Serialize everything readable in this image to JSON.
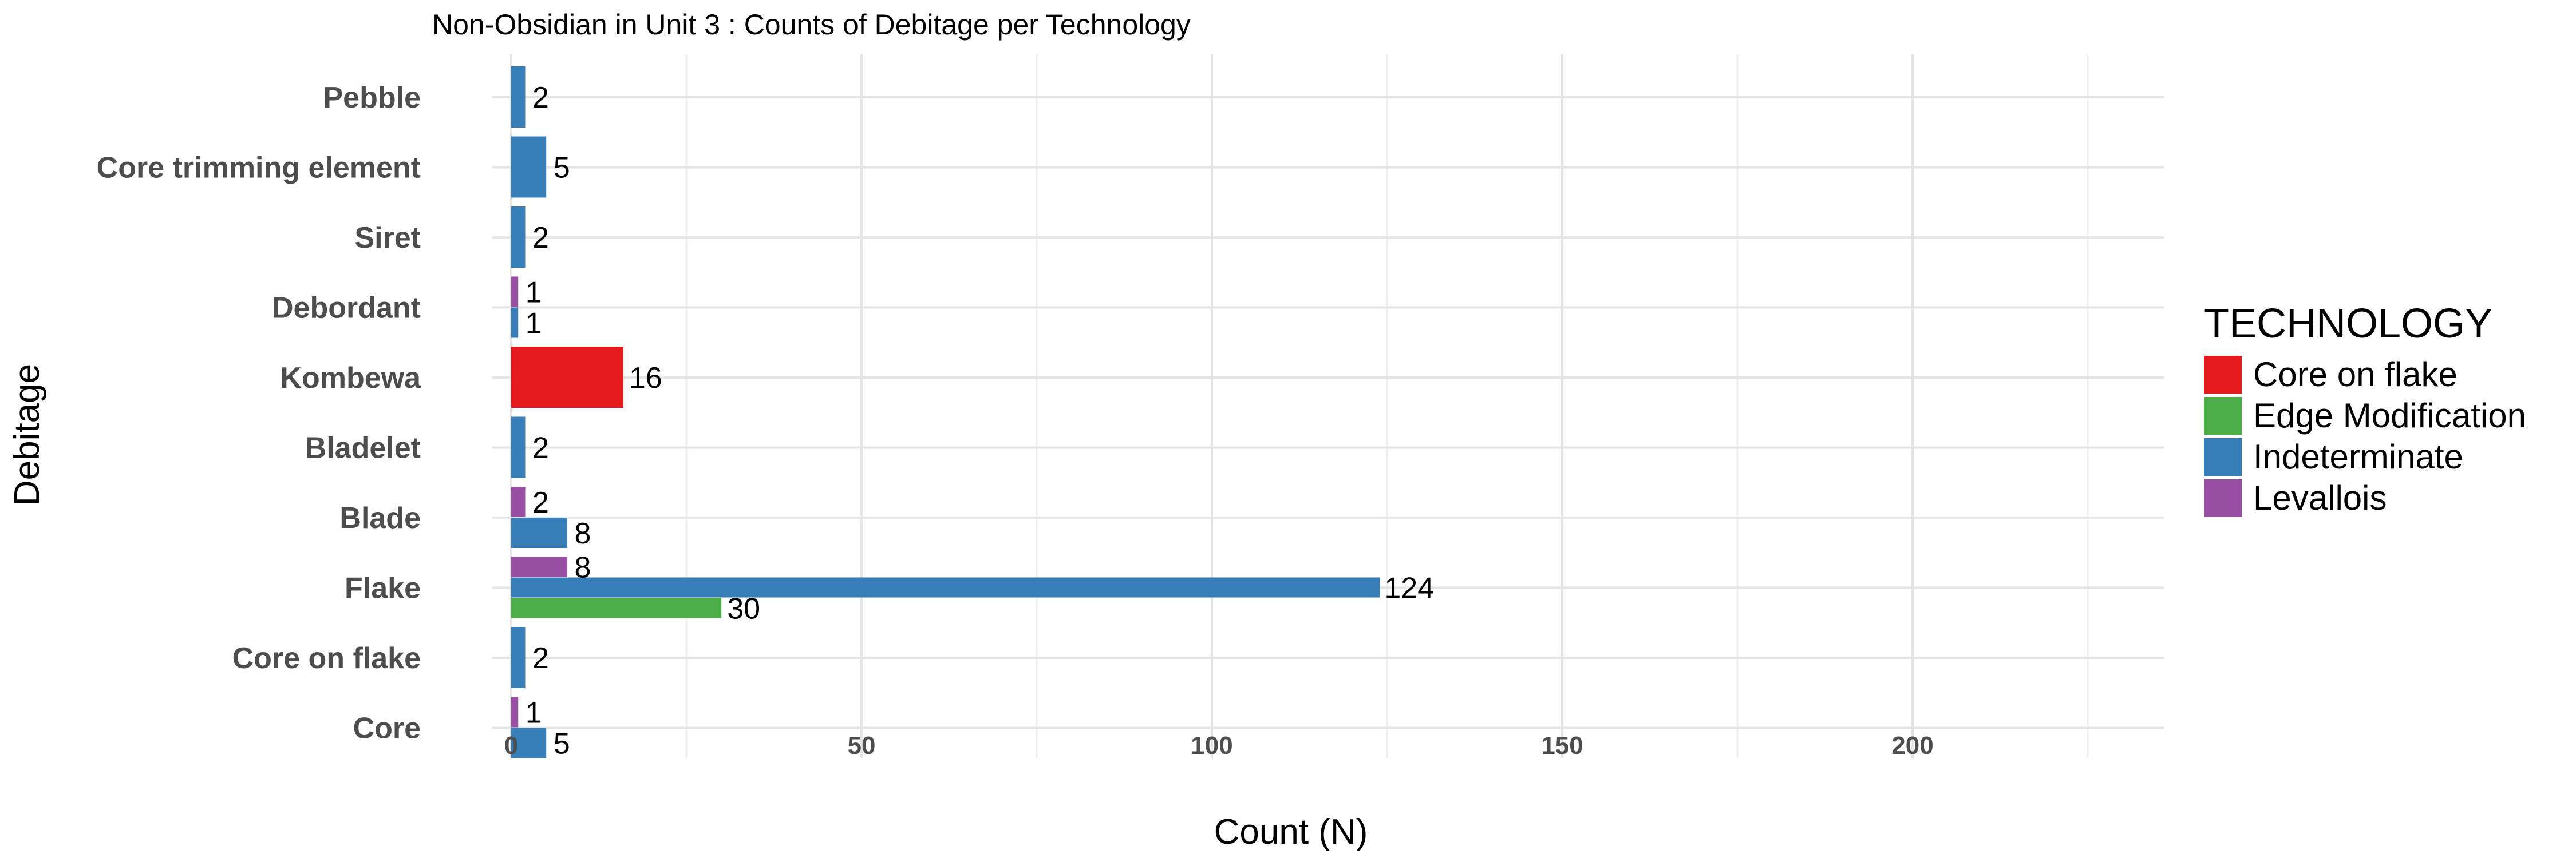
{
  "chart_data": {
    "type": "bar",
    "orientation": "horizontal",
    "title": "Non-Obsidian in Unit 3 : Counts of Debitage per Technology",
    "xlabel": "Count (N)",
    "ylabel": "Debitage",
    "xlim": [
      0,
      237
    ],
    "x_ticks": [
      0,
      50,
      100,
      150,
      200
    ],
    "grid": true,
    "legend_position": "right",
    "legend_title": "TECHNOLOGY",
    "categories": [
      "Pebble",
      "Core trimming element",
      "Siret",
      "Debordant",
      "Kombewa",
      "Bladelet",
      "Blade",
      "Flake",
      "Core on flake",
      "Core"
    ],
    "series": [
      {
        "name": "Core on flake",
        "color": "#E41A1C",
        "values": [
          null,
          null,
          null,
          null,
          16,
          null,
          null,
          null,
          null,
          null
        ]
      },
      {
        "name": "Edge Modification",
        "color": "#4DAF4A",
        "values": [
          null,
          null,
          null,
          null,
          null,
          null,
          null,
          30,
          null,
          null
        ]
      },
      {
        "name": "Indeterminate",
        "color": "#377EB8",
        "values": [
          2,
          5,
          2,
          1,
          null,
          2,
          8,
          124,
          2,
          5
        ]
      },
      {
        "name": "Levallois",
        "color": "#984EA3",
        "values": [
          null,
          null,
          null,
          1,
          null,
          null,
          2,
          8,
          null,
          1
        ]
      }
    ]
  }
}
